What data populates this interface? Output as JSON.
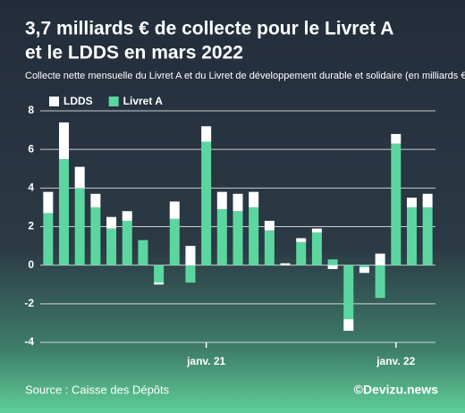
{
  "chart_data": {
    "type": "stacked_bar",
    "title": [
      "3,7 milliards € de collecte pour le Livret A",
      "et le LDDS en mars 2022"
    ],
    "subtitle": "Collecte nette mensuelle du Livret A et du Livret de développement durable et solidaire (en milliards €)",
    "categories": [
      null,
      null,
      null,
      null,
      null,
      null,
      null,
      null,
      null,
      null,
      "janv. 21",
      null,
      null,
      null,
      null,
      null,
      null,
      null,
      null,
      null,
      null,
      null,
      "janv. 22",
      null,
      null
    ],
    "series": [
      {
        "name": "Livret A",
        "color": "#5cd6a0",
        "values": [
          2.7,
          5.5,
          4.0,
          3.0,
          1.9,
          2.3,
          1.3,
          -0.9,
          2.4,
          -0.9,
          6.4,
          2.9,
          2.8,
          3.0,
          1.8,
          0,
          1.2,
          1.7,
          0.3,
          -2.8,
          -0.1,
          -1.7,
          6.3,
          3.0,
          3.0
        ]
      },
      {
        "name": "LDDS",
        "color": "#ffffff",
        "values": [
          1.1,
          1.9,
          1.1,
          0.7,
          0.6,
          0.5,
          0,
          -0.1,
          0.9,
          1.0,
          0.8,
          0.9,
          0.9,
          0.8,
          0.5,
          0.1,
          0.2,
          0.2,
          -0.2,
          -0.6,
          -0.3,
          0.6,
          0.5,
          0.5,
          0.7
        ]
      }
    ],
    "ylim": [
      -4,
      8
    ],
    "yticks": [
      -4,
      -2,
      0,
      2,
      4,
      6,
      8
    ],
    "grid": true,
    "legend": "top-left",
    "source": "Source : Caisse des Dépôts",
    "credit": "©Devizu.news"
  }
}
